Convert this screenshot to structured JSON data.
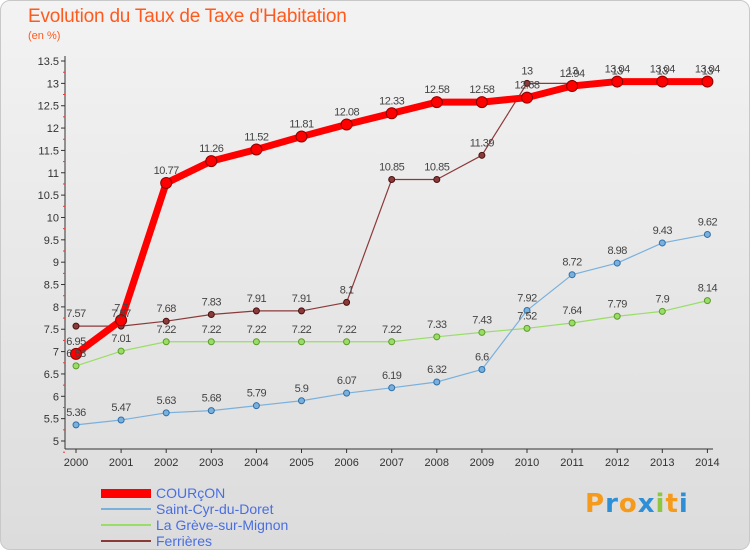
{
  "header": {
    "title": "Evolution du Taux de Taxe d'Habitation",
    "subtitle": "(en %)"
  },
  "logo": {
    "text": "Proxiti",
    "letters": [
      {
        "ch": "P",
        "color": "#f59a1b"
      },
      {
        "ch": "r",
        "color": "#2f8fd6"
      },
      {
        "ch": "o",
        "color": "#f59a1b"
      },
      {
        "ch": "x",
        "color": "#2f8fd6"
      },
      {
        "ch": "i",
        "color": "#8dc63f"
      },
      {
        "ch": "t",
        "color": "#f59a1b"
      },
      {
        "ch": "i",
        "color": "#2f8fd6"
      }
    ]
  },
  "chart_data": {
    "type": "line",
    "title": "Evolution du Taux de Taxe d'Habitation",
    "ylabel": "(en %)",
    "ylim": [
      5,
      13.5
    ],
    "yticks": [
      "5",
      "5.5",
      "6",
      "6.5",
      "7",
      "7.5",
      "8",
      "8.5",
      "9",
      "9.5",
      "10",
      "10.5",
      "11",
      "11.5",
      "12",
      "12.5",
      "13",
      "13.5"
    ],
    "x": [
      "2000",
      "2001",
      "2002",
      "2003",
      "2004",
      "2005",
      "2006",
      "2007",
      "2008",
      "2009",
      "2010",
      "2011",
      "2012",
      "2013",
      "2014"
    ],
    "grid": false,
    "legend_position": "bottom-left",
    "series": [
      {
        "name": "COURçON",
        "color": "#ff0000",
        "values": [
          6.95,
          7.7,
          10.77,
          11.26,
          11.52,
          11.81,
          12.08,
          12.33,
          12.58,
          12.58,
          12.68,
          12.94,
          13.04,
          13.04,
          13.04
        ],
        "labels": [
          "6.95",
          "7.7",
          "10.77",
          "11.26",
          "11.52",
          "11.81",
          "12.08",
          "12.33",
          "12.58",
          "12.58",
          "12.68",
          "12.94",
          "13.04",
          "13.04",
          "13.04"
        ]
      },
      {
        "name": "Saint-Cyr-du-Doret",
        "color": "#7ab0dc",
        "values": [
          5.36,
          5.47,
          5.63,
          5.68,
          5.79,
          5.9,
          6.07,
          6.19,
          6.32,
          6.6,
          7.92,
          8.72,
          8.98,
          9.43,
          9.62
        ],
        "labels": [
          "5.36",
          "5.47",
          "5.63",
          "5.68",
          "5.79",
          "5.9",
          "6.07",
          "6.19",
          "6.32",
          "6.6",
          "7.92",
          "8.72",
          "8.98",
          "9.43",
          "9.62"
        ]
      },
      {
        "name": "La Grève-sur-Mignon",
        "color": "#99dd66",
        "values": [
          6.68,
          7.01,
          7.22,
          7.22,
          7.22,
          7.22,
          7.22,
          7.22,
          7.33,
          7.43,
          7.52,
          7.64,
          7.79,
          7.9,
          8.14
        ],
        "labels": [
          "6.68",
          "7.01",
          "7.22",
          "7.22",
          "7.22",
          "7.22",
          "7.22",
          "7.22",
          "7.33",
          "7.43",
          "7.52",
          "7.64",
          "7.79",
          "7.9",
          "8.14"
        ]
      },
      {
        "name": "Ferrières",
        "color": "#8b3a3a",
        "values": [
          7.57,
          7.57,
          7.68,
          7.83,
          7.91,
          7.91,
          8.1,
          10.85,
          10.85,
          11.39,
          13,
          13,
          13,
          13,
          13
        ],
        "labels": [
          "7.57",
          "7.57",
          "7.68",
          "7.83",
          "7.91",
          "7.91",
          "8.1",
          "10.85",
          "10.85",
          "11.39",
          "13",
          "13",
          "13",
          "13",
          "13"
        ]
      }
    ]
  }
}
